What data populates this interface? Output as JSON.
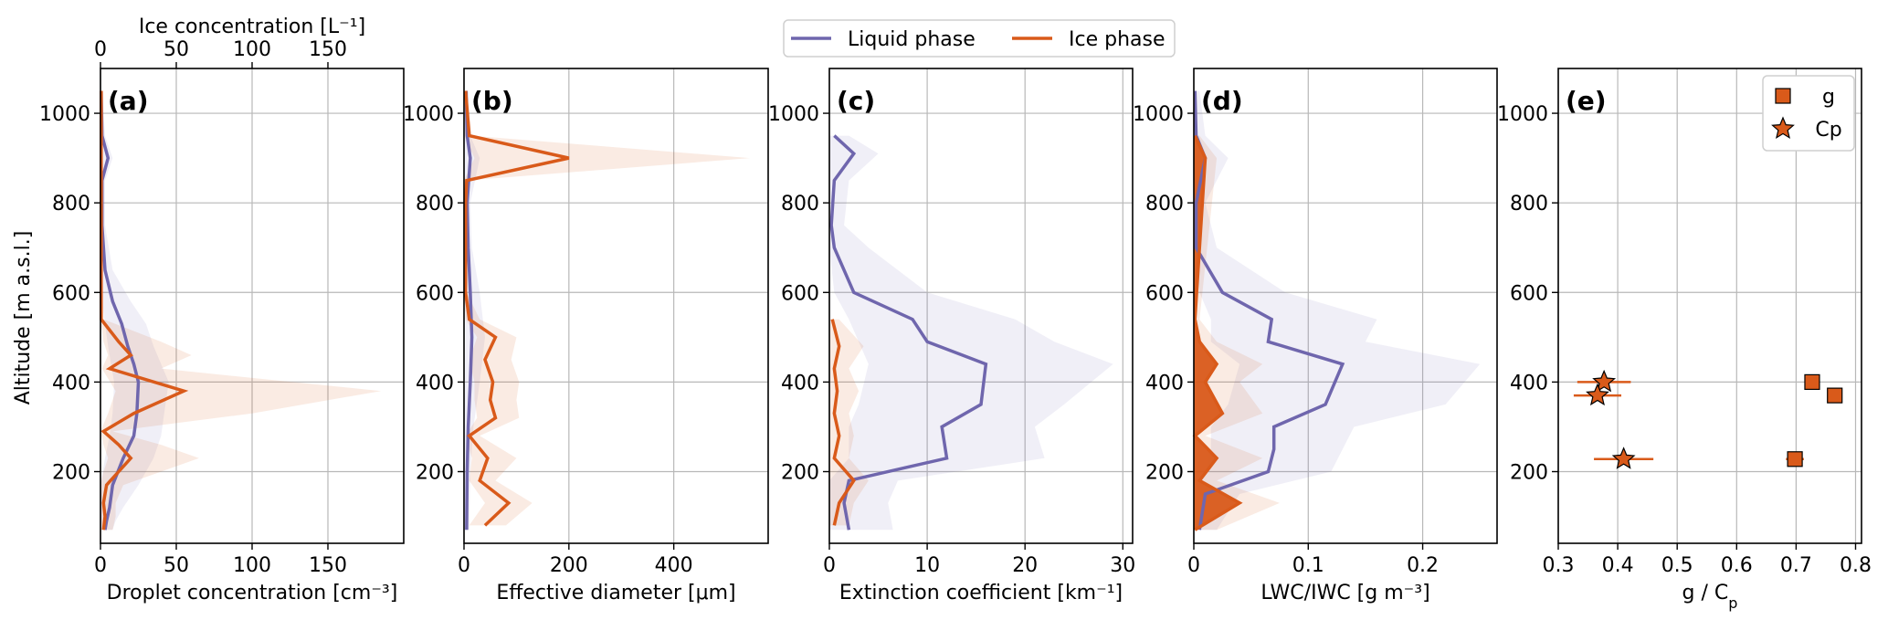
{
  "figure": {
    "top_legend": [
      {
        "label": "Liquid phase",
        "color": "#6f66ad"
      },
      {
        "label": "Ice phase",
        "color": "#d95a1a"
      }
    ],
    "shared_y_label": "Altitude [m a.s.l.]"
  },
  "chart_data": [
    {
      "type": "line",
      "panel_label": "(a)",
      "xlabel": "Droplet concentration [cm⁻³]",
      "xlim": [
        0,
        200
      ],
      "xticks": [
        0,
        50,
        100,
        150
      ],
      "top_xlabel": "Ice concentration [L⁻¹]",
      "top_xlim": [
        0,
        200
      ],
      "top_xticks": [
        0,
        50,
        100,
        150
      ],
      "ylim": [
        40,
        1100
      ],
      "yticks": [
        200,
        400,
        600,
        800,
        1000
      ],
      "grid": true,
      "series": [
        {
          "name": "Liquid phase",
          "y": [
            70,
            90,
            120,
            170,
            230,
            280,
            330,
            400,
            440,
            480,
            530,
            580,
            650,
            750,
            850,
            900,
            950,
            1050
          ],
          "x": [
            3,
            4,
            6,
            8,
            15,
            22,
            24,
            25,
            22,
            18,
            14,
            8,
            3,
            1,
            1,
            5,
            1,
            0.5
          ],
          "band_lo": [
            0,
            0,
            0,
            0,
            3,
            6,
            8,
            9,
            7,
            5,
            3,
            1,
            0,
            0,
            0,
            0,
            0,
            0
          ],
          "band_hi": [
            8,
            10,
            15,
            25,
            35,
            40,
            42,
            45,
            40,
            35,
            30,
            20,
            8,
            3,
            3,
            8,
            3,
            1
          ]
        },
        {
          "name": "Ice phase",
          "y": [
            70,
            100,
            130,
            170,
            200,
            230,
            260,
            290,
            330,
            380,
            430,
            460,
            490,
            540,
            600,
            700,
            800,
            900,
            1000,
            1050
          ],
          "x": [
            2,
            3,
            2,
            4,
            12,
            20,
            12,
            2,
            22,
            55,
            6,
            20,
            12,
            0.5,
            0.5,
            0.5,
            0.5,
            0.5,
            0.5,
            0.5
          ],
          "band_lo": [
            0,
            0,
            0,
            0,
            2,
            5,
            2,
            0,
            5,
            10,
            1,
            5,
            2,
            0,
            0,
            0,
            0,
            0,
            0,
            0
          ],
          "band_hi": [
            8,
            10,
            10,
            15,
            40,
            65,
            40,
            8,
            100,
            185,
            40,
            60,
            40,
            2,
            1,
            1,
            1,
            1,
            1,
            1
          ]
        }
      ]
    },
    {
      "type": "line",
      "panel_label": "(b)",
      "xlabel": "Effective diameter [μm]",
      "xlim": [
        0,
        580
      ],
      "xticks": [
        0,
        200,
        400
      ],
      "ylim": [
        40,
        1100
      ],
      "yticks": [
        200,
        400,
        600,
        800,
        1000
      ],
      "grid": true,
      "series": [
        {
          "name": "Liquid phase",
          "y": [
            70,
            200,
            300,
            400,
            500,
            600,
            700,
            800,
            900,
            950,
            1050
          ],
          "x": [
            5,
            6,
            8,
            12,
            15,
            12,
            8,
            6,
            12,
            6,
            4
          ],
          "band_lo": [
            0,
            0,
            0,
            2,
            3,
            2,
            0,
            0,
            0,
            0,
            0
          ],
          "band_hi": [
            10,
            12,
            18,
            30,
            40,
            30,
            15,
            12,
            30,
            12,
            8
          ]
        },
        {
          "name": "Ice phase",
          "y": [
            80,
            130,
            180,
            230,
            280,
            320,
            360,
            400,
            450,
            500,
            540,
            600,
            700,
            800,
            850,
            900,
            950,
            1050
          ],
          "x": [
            40,
            85,
            30,
            45,
            10,
            60,
            50,
            55,
            40,
            60,
            10,
            3,
            3,
            3,
            5,
            200,
            10,
            3
          ],
          "band_lo": [
            10,
            40,
            10,
            15,
            3,
            25,
            20,
            20,
            10,
            25,
            3,
            0,
            0,
            0,
            0,
            20,
            0,
            0
          ],
          "band_hi": [
            80,
            130,
            60,
            100,
            30,
            105,
            100,
            105,
            90,
            100,
            30,
            5,
            5,
            5,
            5,
            545,
            15,
            5
          ]
        }
      ]
    },
    {
      "type": "line",
      "panel_label": "(c)",
      "xlabel": "Extinction coefficient [km⁻¹]",
      "xlim": [
        0,
        31
      ],
      "xticks": [
        0,
        10,
        20,
        30
      ],
      "ylim": [
        40,
        1100
      ],
      "yticks": [
        200,
        400,
        600,
        800,
        1000
      ],
      "grid": true,
      "series": [
        {
          "name": "Liquid phase",
          "y": [
            70,
            130,
            180,
            230,
            300,
            350,
            440,
            490,
            540,
            600,
            700,
            750,
            850,
            910,
            950
          ],
          "x": [
            2,
            1.5,
            2,
            12,
            11.5,
            15.5,
            16,
            10,
            8.5,
            2.5,
            0.5,
            0.2,
            0.5,
            2.5,
            0.5
          ],
          "band_lo": [
            0,
            0,
            0,
            2,
            2,
            3,
            4,
            3,
            2,
            0.5,
            0,
            0,
            0,
            0,
            0
          ],
          "band_hi": [
            6.5,
            6,
            7,
            22,
            21,
            24,
            29,
            23,
            19,
            10,
            4,
            1.5,
            2,
            5,
            2
          ],
          "band_gap": true
        },
        {
          "name": "Ice phase",
          "y": [
            80,
            130,
            180,
            230,
            280,
            330,
            380,
            430,
            480,
            540
          ],
          "x": [
            0.5,
            1,
            2.5,
            0.5,
            1,
            0.5,
            0.8,
            0.5,
            1,
            0.3
          ],
          "band_lo": [
            0,
            0,
            0,
            0,
            0,
            0,
            0,
            0,
            0,
            0
          ],
          "band_hi": [
            2,
            2.5,
            4,
            2,
            2.5,
            2,
            3,
            2,
            3.5,
            1
          ]
        }
      ]
    },
    {
      "type": "area",
      "panel_label": "(d)",
      "xlabel": "LWC/IWC [g m⁻³]",
      "xlim": [
        0,
        0.265
      ],
      "xticks": [
        0.0,
        0.1,
        0.2
      ],
      "ylim": [
        40,
        1100
      ],
      "yticks": [
        200,
        400,
        600,
        800,
        1000
      ],
      "grid": true,
      "series": [
        {
          "name": "Liquid phase",
          "y": [
            70,
            150,
            200,
            250,
            300,
            350,
            440,
            490,
            540,
            600,
            700,
            800,
            900,
            950,
            1050
          ],
          "x": [
            0.005,
            0.01,
            0.065,
            0.07,
            0.07,
            0.115,
            0.13,
            0.065,
            0.068,
            0.025,
            0.002,
            0.002,
            0.01,
            0.002,
            0.001
          ],
          "band_lo": [
            0,
            0,
            0.01,
            0.015,
            0.015,
            0.03,
            0.04,
            0.015,
            0.015,
            0.005,
            0,
            0,
            0,
            0,
            0
          ],
          "band_hi": [
            0.02,
            0.04,
            0.12,
            0.13,
            0.14,
            0.22,
            0.25,
            0.15,
            0.16,
            0.08,
            0.02,
            0.01,
            0.03,
            0.01,
            0.005
          ]
        },
        {
          "name": "Ice phase",
          "y": [
            70,
            130,
            180,
            230,
            280,
            330,
            400,
            440,
            490,
            540,
            900,
            950
          ],
          "x": [
            0.001,
            0.04,
            0.005,
            0.02,
            0.001,
            0.025,
            0.01,
            0.02,
            0.005,
            0.001,
            0.01,
            0.001
          ],
          "band_lo": [
            0,
            0.01,
            0,
            0.005,
            0,
            0.005,
            0.002,
            0.005,
            0,
            0,
            0,
            0
          ],
          "band_hi": [
            0.02,
            0.075,
            0.02,
            0.06,
            0.01,
            0.06,
            0.04,
            0.06,
            0.02,
            0.005,
            0.02,
            0.005
          ]
        }
      ]
    },
    {
      "type": "scatter",
      "panel_label": "(e)",
      "xlabel": "g / C",
      "xlabel_sub": "p",
      "xlim": [
        0.3,
        0.81
      ],
      "xticks": [
        0.3,
        0.4,
        0.5,
        0.6,
        0.7,
        0.8
      ],
      "ylim": [
        40,
        1100
      ],
      "yticks": [
        200,
        400,
        600,
        800,
        1000
      ],
      "grid": true,
      "legend": "top-right",
      "series": [
        {
          "name": "g",
          "marker": "square",
          "color": "#d95a1a",
          "points": [
            {
              "x": 0.727,
              "y": 400,
              "xerr": 0.01
            },
            {
              "x": 0.765,
              "y": 370,
              "xerr": 0.01
            },
            {
              "x": 0.698,
              "y": 228,
              "xerr": 0.015
            }
          ]
        },
        {
          "name": "Cp",
          "marker": "star",
          "color": "#d95a1a",
          "points": [
            {
              "x": 0.377,
              "y": 400,
              "xerr": 0.045
            },
            {
              "x": 0.366,
              "y": 370,
              "xerr": 0.04
            },
            {
              "x": 0.41,
              "y": 228,
              "xerr": 0.05
            }
          ]
        }
      ]
    }
  ]
}
